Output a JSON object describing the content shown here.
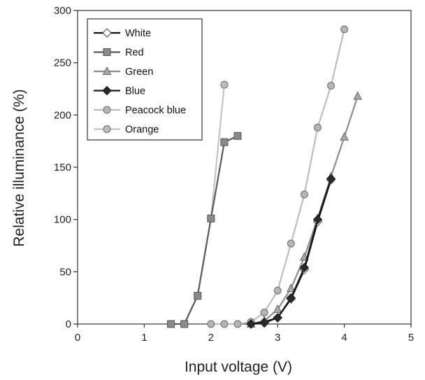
{
  "chart_data": {
    "type": "line",
    "title": "",
    "xlabel": "Input voltage (V)",
    "ylabel": "Relative illuminance (%)",
    "xlim": [
      0,
      5
    ],
    "ylim": [
      0,
      300
    ],
    "xticks": [
      0,
      1,
      2,
      3,
      4,
      5
    ],
    "yticks": [
      0,
      50,
      100,
      150,
      200,
      250,
      300
    ],
    "grid": false,
    "legend": "top-left",
    "series": [
      {
        "name": "White",
        "marker": "diamond",
        "line_color": "#111111",
        "marker_fill": "#ffffff",
        "marker_stroke": "#444444",
        "points": [
          [
            2.6,
            0
          ],
          [
            2.8,
            2
          ],
          [
            3.0,
            6
          ],
          [
            3.2,
            24
          ],
          [
            3.4,
            52
          ],
          [
            3.6,
            98
          ],
          [
            3.8,
            138
          ]
        ]
      },
      {
        "name": "Red",
        "marker": "square",
        "line_color": "#5a5a5a",
        "marker_fill": "#8a8a8a",
        "marker_stroke": "#555555",
        "points": [
          [
            1.4,
            0
          ],
          [
            1.6,
            0
          ],
          [
            1.8,
            27
          ],
          [
            2.0,
            101
          ],
          [
            2.2,
            174
          ],
          [
            2.4,
            180
          ]
        ]
      },
      {
        "name": "Green",
        "marker": "triangle",
        "line_color": "#8c8c8c",
        "marker_fill": "#a8a8a8",
        "marker_stroke": "#666666",
        "points": [
          [
            2.6,
            0
          ],
          [
            2.8,
            3
          ],
          [
            3.0,
            14
          ],
          [
            3.2,
            34
          ],
          [
            3.4,
            64
          ],
          [
            3.6,
            101
          ],
          [
            3.8,
            141
          ],
          [
            4.0,
            179
          ],
          [
            4.2,
            218
          ]
        ]
      },
      {
        "name": "Blue",
        "marker": "diamond",
        "line_color": "#1a1a1a",
        "marker_fill": "#2a2a2a",
        "marker_stroke": "#1a1a1a",
        "points": [
          [
            2.6,
            0
          ],
          [
            2.8,
            1
          ],
          [
            3.0,
            6
          ],
          [
            3.2,
            25
          ],
          [
            3.4,
            54
          ],
          [
            3.6,
            100
          ],
          [
            3.8,
            139
          ]
        ]
      },
      {
        "name": "Peacock blue",
        "marker": "circle",
        "line_color": "#bdbdbd",
        "marker_fill": "#b5b5b5",
        "marker_stroke": "#6e6e6e",
        "points": [
          [
            2.0,
            0
          ],
          [
            2.2,
            0
          ],
          [
            2.4,
            0
          ],
          [
            2.6,
            2
          ],
          [
            2.8,
            11
          ],
          [
            3.0,
            32
          ],
          [
            3.2,
            77
          ],
          [
            3.4,
            124
          ],
          [
            3.6,
            188
          ],
          [
            3.8,
            228
          ],
          [
            4.0,
            282
          ]
        ]
      },
      {
        "name": "Orange",
        "marker": "circle",
        "line_color": "#c4c4c4",
        "marker_fill": "#bcbcbc",
        "marker_stroke": "#6e6e6e",
        "points": [
          [
            1.6,
            0
          ],
          [
            1.8,
            27
          ],
          [
            2.0,
            101
          ],
          [
            2.2,
            229
          ]
        ]
      }
    ]
  }
}
